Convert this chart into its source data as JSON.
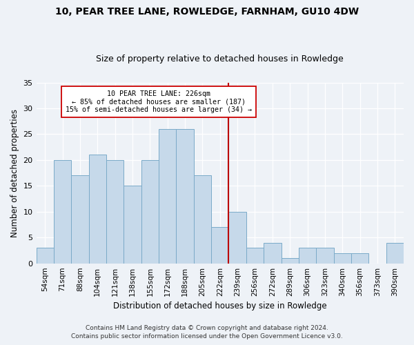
{
  "title": "10, PEAR TREE LANE, ROWLEDGE, FARNHAM, GU10 4DW",
  "subtitle": "Size of property relative to detached houses in Rowledge",
  "xlabel": "Distribution of detached houses by size in Rowledge",
  "ylabel": "Number of detached properties",
  "categories": [
    "54sqm",
    "71sqm",
    "88sqm",
    "104sqm",
    "121sqm",
    "138sqm",
    "155sqm",
    "172sqm",
    "188sqm",
    "205sqm",
    "222sqm",
    "239sqm",
    "256sqm",
    "272sqm",
    "289sqm",
    "306sqm",
    "323sqm",
    "340sqm",
    "356sqm",
    "373sqm",
    "390sqm"
  ],
  "values": [
    3,
    20,
    17,
    21,
    20,
    15,
    20,
    26,
    26,
    17,
    7,
    10,
    3,
    4,
    1,
    3,
    3,
    2,
    2,
    0,
    4
  ],
  "bar_color": "#c6d9ea",
  "bar_edgecolor": "#7aaac8",
  "vline_x": 10.5,
  "vline_color": "#bb0000",
  "annotation_title": "10 PEAR TREE LANE: 226sqm",
  "annotation_line1": "← 85% of detached houses are smaller (187)",
  "annotation_line2": "15% of semi-detached houses are larger (34) →",
  "ylim": [
    0,
    35
  ],
  "yticks": [
    0,
    5,
    10,
    15,
    20,
    25,
    30,
    35
  ],
  "footer1": "Contains HM Land Registry data © Crown copyright and database right 2024.",
  "footer2": "Contains public sector information licensed under the Open Government Licence v3.0.",
  "background_color": "#eef2f7",
  "plot_background": "#eef2f7",
  "grid_color": "#ffffff"
}
